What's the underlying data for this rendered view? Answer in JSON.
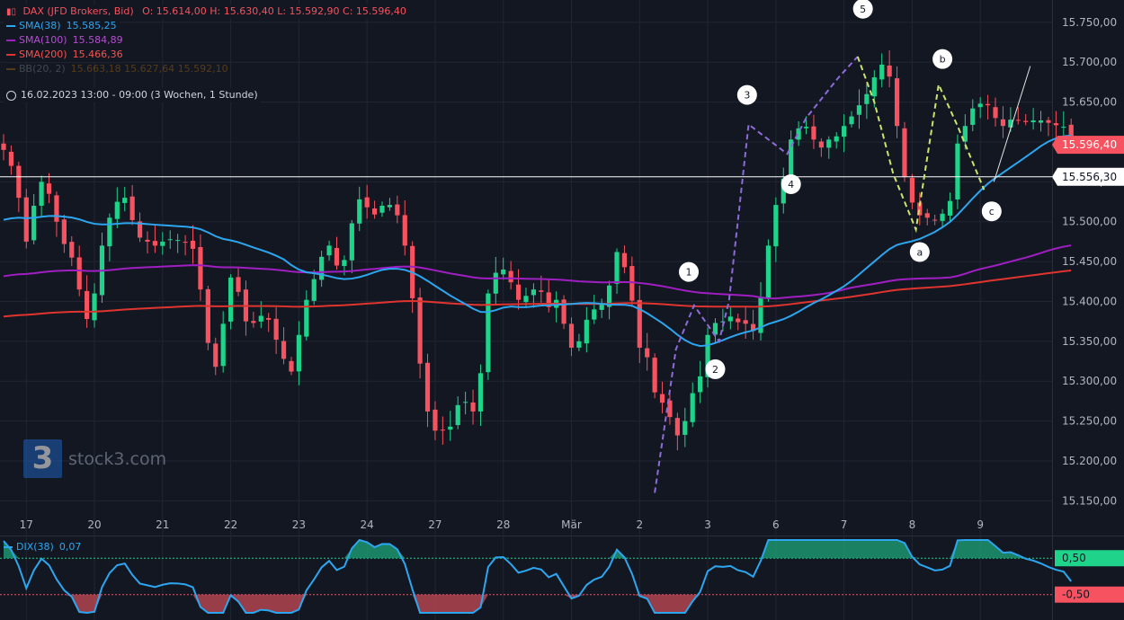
{
  "header": {
    "instrument": "DAX (JFD Brokers, Bid)",
    "ohlc": "O: 15.614,00  H: 15.630,40  L: 15.592,90  C: 15.596,40",
    "indicators": [
      {
        "label": "SMA(38)",
        "value": "15.585,25",
        "color": "#2da6f0"
      },
      {
        "label": "SMA(100)",
        "value": "15.584,89",
        "color": "#a01fc2"
      },
      {
        "label": "SMA(200)",
        "value": "15.466,36",
        "color": "#e0342f"
      },
      {
        "label": "BB(20, 2)",
        "value": "15.663,18  15.627,64  15.592,10",
        "color": "#ff9800"
      }
    ],
    "period": "16.02.2023 13:00 - 09:00  (3 Wochen, 1 Stunde)"
  },
  "dix_legend": {
    "label": "DIX(38)",
    "value": "0,07",
    "color": "#2da6f0"
  },
  "watermark": {
    "text": "stock3.com",
    "mark": "3"
  },
  "chart_data": {
    "type": "candlestick",
    "y_axis": {
      "ticks": [
        "15.750,00",
        "15.700,00",
        "15.650,00",
        "15.600,00",
        "15.550,00",
        "15.500,00",
        "15.450,00",
        "15.400,00",
        "15.350,00",
        "15.300,00",
        "15.250,00",
        "15.200,00",
        "15.150,00"
      ],
      "tick_values": [
        15750,
        15700,
        15650,
        15600,
        15550,
        15500,
        15450,
        15400,
        15350,
        15300,
        15250,
        15200,
        15150
      ],
      "range": [
        15138,
        15778
      ]
    },
    "x_axis": {
      "ticks": [
        "17",
        "20",
        "21",
        "22",
        "23",
        "24",
        "27",
        "28",
        "Mär",
        "2",
        "3",
        "6",
        "7",
        "8",
        "9"
      ],
      "tick_index": [
        3,
        12,
        21,
        30,
        39,
        48,
        57,
        66,
        75,
        84,
        93,
        102,
        111,
        120,
        129
      ],
      "n_bars": 142
    },
    "price_labels": [
      {
        "text": "15.596,40",
        "value": 15596.4,
        "bg": "#f7525f",
        "fg": "#ffffff"
      },
      {
        "text": "15.556,30",
        "value": 15556.3,
        "bg": "#ffffff",
        "fg": "#131722"
      }
    ],
    "horizontal_line": 15556.3,
    "closes": [
      15590,
      15570,
      15530,
      15475,
      15520,
      15550,
      15535,
      15500,
      15472,
      15455,
      15415,
      15378,
      15410,
      15470,
      15505,
      15525,
      15530,
      15502,
      15480,
      15475,
      15470,
      15475,
      15478,
      15477,
      15474,
      15466,
      15415,
      15348,
      15318,
      15372,
      15430,
      15412,
      15375,
      15373,
      15382,
      15377,
      15352,
      15328,
      15312,
      15358,
      15402,
      15428,
      15456,
      15470,
      15445,
      15452,
      15498,
      15528,
      15518,
      15509,
      15520,
      15521,
      15508,
      15470,
      15404,
      15322,
      15262,
      15238,
      15239,
      15243,
      15270,
      15274,
      15262,
      15310,
      15410,
      15436,
      15440,
      15424,
      15402,
      15407,
      15415,
      15412,
      15393,
      15402,
      15372,
      15342,
      15350,
      15377,
      15390,
      15396,
      15420,
      15462,
      15443,
      15401,
      15342,
      15330,
      15286,
      15273,
      15255,
      15232,
      15250,
      15285,
      15306,
      15358,
      15373,
      15375,
      15381,
      15374,
      15372,
      15363,
      15406,
      15470,
      15521,
      15554,
      15603,
      15617,
      15619,
      15603,
      15593,
      15603,
      15607,
      15620,
      15632,
      15646,
      15660,
      15681,
      15697,
      15682,
      15620,
      15556,
      15524,
      15508,
      15505,
      15502,
      15510,
      15526,
      15598,
      15620,
      15642,
      15648,
      15646,
      15630,
      15620,
      15628,
      15627,
      15625,
      15627,
      15627,
      15624,
      15621,
      15619,
      15596
    ],
    "annotations": [
      {
        "label": "1",
        "bar": 90.5,
        "value": 15437
      },
      {
        "label": "2",
        "bar": 94,
        "value": 15315
      },
      {
        "label": "3",
        "bar": 98.2,
        "value": 15659
      },
      {
        "label": "4",
        "bar": 104,
        "value": 15547
      },
      {
        "label": "5",
        "bar": 113.5,
        "value": 15767
      },
      {
        "label": "a",
        "bar": 121,
        "value": 15462
      },
      {
        "label": "b",
        "bar": 124,
        "value": 15704
      },
      {
        "label": "c",
        "bar": 130.5,
        "value": 15513
      }
    ],
    "wave_lines": [
      {
        "color": "#8d6bd8",
        "points": [
          [
            86,
            15160
          ],
          [
            88.8,
            15340
          ],
          [
            91.2,
            15395
          ],
          [
            94.5,
            15350
          ],
          [
            95.8,
            15400
          ],
          [
            98.4,
            15622
          ],
          [
            103.5,
            15585
          ],
          [
            106,
            15630
          ],
          [
            110.2,
            15680
          ],
          [
            112.8,
            15707
          ]
        ]
      },
      {
        "color": "#cbe56a",
        "points": [
          [
            112.8,
            15707
          ],
          [
            115,
            15650
          ],
          [
            117.5,
            15560
          ],
          [
            120.5,
            15490
          ],
          [
            123.5,
            15672
          ],
          [
            126,
            15620
          ],
          [
            129.5,
            15540
          ]
        ]
      },
      {
        "color": "#e6e6e6",
        "points": [
          [
            130.8,
            15550
          ],
          [
            135.6,
            15695
          ]
        ]
      }
    ],
    "dix_axis": {
      "ticks": [
        "0,50",
        "-0,50"
      ],
      "tick_values": [
        0.5,
        -0.5
      ],
      "range": [
        -1.05,
        1.0
      ]
    }
  }
}
